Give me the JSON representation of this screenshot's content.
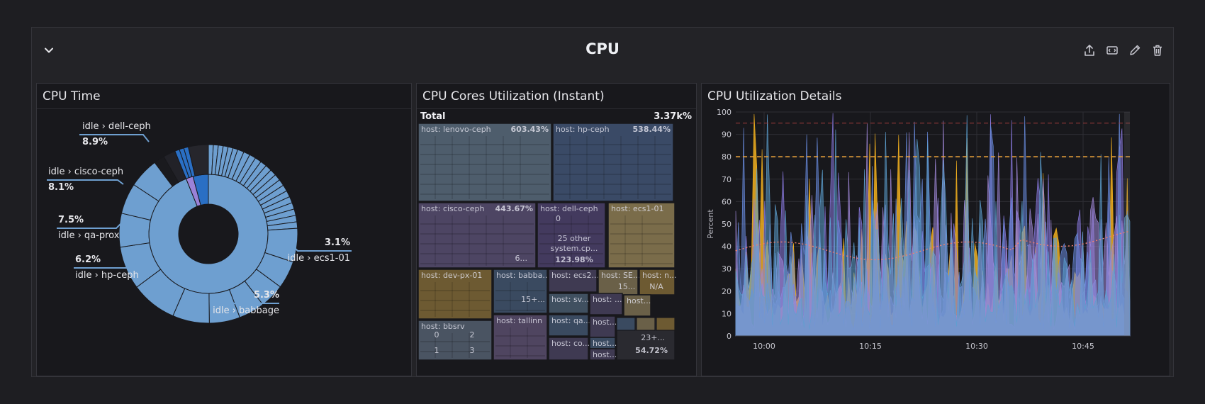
{
  "row": {
    "title": "CPU",
    "actions": [
      {
        "name": "share-icon"
      },
      {
        "name": "embed-icon"
      },
      {
        "name": "edit-icon"
      },
      {
        "name": "delete-icon"
      }
    ]
  },
  "panels": {
    "cpu_time": {
      "title": "CPU Time",
      "labels": [
        {
          "label": "idle › dell-ceph",
          "value": "8.9%"
        },
        {
          "label": "idle › cisco-ceph",
          "value": "8.1%"
        },
        {
          "label": "idle › qa-prox",
          "value": "7.5%"
        },
        {
          "label": "idle › hp-ceph",
          "value": "6.2%"
        },
        {
          "label": "idle › babbage",
          "value": "5.3%"
        },
        {
          "label": "idle › ecs1-01",
          "value": "3.1%"
        }
      ],
      "colors": {
        "main": "#6e9fd0",
        "dark": "#2a6fc4",
        "purple": "#9a82d8",
        "black": "#1a1a1e"
      }
    },
    "treemap": {
      "title": "CPU Cores Utilization (Instant)",
      "total_label": "Total",
      "total_value": "3.37k%",
      "cells": [
        {
          "label": "host: lenovo-ceph",
          "value": "603.43%",
          "color": "#4e5d6c"
        },
        {
          "label": "host: hp-ceph",
          "value": "538.44%",
          "color": "#3a4a66"
        },
        {
          "label": "host: cisco-ceph",
          "value": "443.67%",
          "color": "#4d4563"
        },
        {
          "label": "host: dell-ceph",
          "value": "",
          "color": "#433a5e"
        },
        {
          "label": "host: ecs1-01",
          "value": "",
          "color": "#7a6c4a"
        },
        {
          "label": "host: dev-px-01",
          "value": "",
          "color": "#6d5a32"
        },
        {
          "label": "host: babba...",
          "value": "",
          "color": "#3a4a60"
        },
        {
          "label": "host: ecs2...",
          "value": "",
          "color": "#3f3a52"
        },
        {
          "label": "host: SE...",
          "value": "",
          "color": "#6a6048"
        },
        {
          "label": "host: n...",
          "value": "",
          "color": "#6d5a32"
        },
        {
          "label": "host: sv...",
          "value": "",
          "color": "#405060"
        },
        {
          "label": "host: ...",
          "value": "",
          "color": "#3f3a52"
        },
        {
          "label": "host...",
          "value": "",
          "color": "#6a6048"
        },
        {
          "label": "host: bbsrv",
          "value": "",
          "color": "#4a5462"
        },
        {
          "label": "host: tallinn",
          "value": "",
          "color": "#4f4560"
        },
        {
          "label": "host: qa...",
          "value": "",
          "color": "#3a4a60"
        },
        {
          "label": "host...",
          "value": "",
          "color": "#3f3a52"
        },
        {
          "label": "host...",
          "value": "",
          "color": "#3a4a60"
        },
        {
          "label": "host: co...",
          "value": "",
          "color": "#3f3a52"
        },
        {
          "label": "host...",
          "value": "",
          "color": "#3f3a52"
        }
      ],
      "inner_texts": {
        "cisco_more": "6...",
        "dell_zero": "0",
        "dell_other": "25 other",
        "dell_other2": "system.cp...",
        "dell_other_val": "123.98%",
        "babba_more": "15+...",
        "se_more": "15...",
        "n_na": "N/A",
        "bbsrv_0": "0",
        "bbsrv_2": "2",
        "bbsrv_1": "1",
        "bbsrv_3": "3",
        "rest": "23+...",
        "rest_value": "54.72%"
      }
    },
    "details": {
      "title": "CPU Utilization Details",
      "ylabel": "Percent",
      "yticks": [
        "0",
        "10",
        "20",
        "30",
        "40",
        "50",
        "60",
        "70",
        "80",
        "90",
        "100"
      ],
      "xticks": [
        "10:00",
        "10:15",
        "10:30",
        "10:45"
      ],
      "thresholds": [
        {
          "value": 80,
          "color": "#e8a03a"
        },
        {
          "value": 95,
          "color": "#a03a3a"
        }
      ],
      "series_colors": [
        "#f2b01e",
        "#8b7ae0",
        "#6a8de0",
        "#a088d8",
        "#5da0d0"
      ]
    }
  }
}
